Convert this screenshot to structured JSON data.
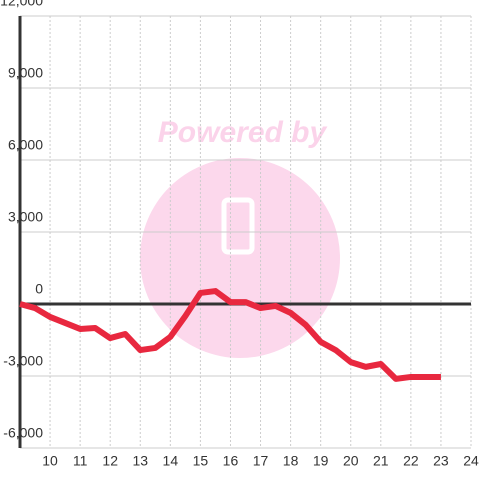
{
  "chart_data": {
    "type": "line",
    "watermark": "Powered by",
    "x": [
      9,
      9.5,
      10,
      10.5,
      11,
      11.5,
      12,
      12.5,
      13,
      13.5,
      14,
      14.5,
      15,
      15.5,
      16,
      16.5,
      17,
      17.5,
      18,
      18.5,
      19,
      19.5,
      20,
      20.5,
      21,
      21.5,
      22,
      22.5,
      23
    ],
    "series": [
      {
        "color": "#e8283f",
        "values": [
          0,
          -170,
          -540,
          -790,
          -1040,
          -1000,
          -1420,
          -1250,
          -1920,
          -1830,
          -1370,
          -500,
          460,
          540,
          80,
          80,
          -170,
          -80,
          -370,
          -870,
          -1580,
          -1920,
          -2420,
          -2620,
          -2500,
          -3120,
          -3040,
          -3040,
          -3040
        ]
      }
    ],
    "xlim": [
      9,
      24
    ],
    "xticks": [
      10,
      11,
      12,
      13,
      14,
      15,
      16,
      17,
      18,
      19,
      20,
      21,
      22,
      23,
      24
    ],
    "ylim": [
      -6000,
      12000
    ],
    "yticks": [
      {
        "value": -6000,
        "label": "-6,000"
      },
      {
        "value": -3000,
        "label": "-3,000"
      },
      0,
      {
        "value": 3000,
        "label": "3,000"
      },
      {
        "value": 6000,
        "label": "6,000"
      },
      {
        "value": 9000,
        "label": "9,000"
      },
      {
        "value": 12000,
        "label": "12,000"
      }
    ],
    "grid": true
  }
}
